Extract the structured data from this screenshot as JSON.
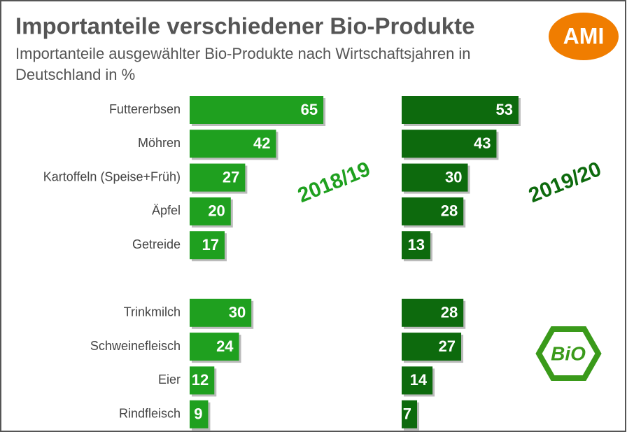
{
  "chart_data": {
    "type": "bar",
    "title": "Importanteile verschiedener Bio-Produkte",
    "subtitle": "Importanteile ausgewählter Bio-Produkte nach Wirtschaftsjahren in Deutschland in %",
    "logo": "AMI",
    "badge": "BiO",
    "categories": [
      "Futtererbsen",
      "Möhren",
      "Kartoffeln (Speise+Früh)",
      "Äpfel",
      "Getreide",
      null,
      "Trinkmilch",
      "Schweinefleisch",
      "Eier",
      "Rindfleisch"
    ],
    "series": [
      {
        "name": "2018/19",
        "color": "#1fa01f",
        "values": [
          65,
          42,
          27,
          20,
          17,
          null,
          30,
          24,
          12,
          9
        ]
      },
      {
        "name": "2019/20",
        "color": "#0d6a0d",
        "values": [
          53,
          43,
          30,
          28,
          13,
          null,
          28,
          27,
          14,
          7
        ]
      }
    ]
  }
}
